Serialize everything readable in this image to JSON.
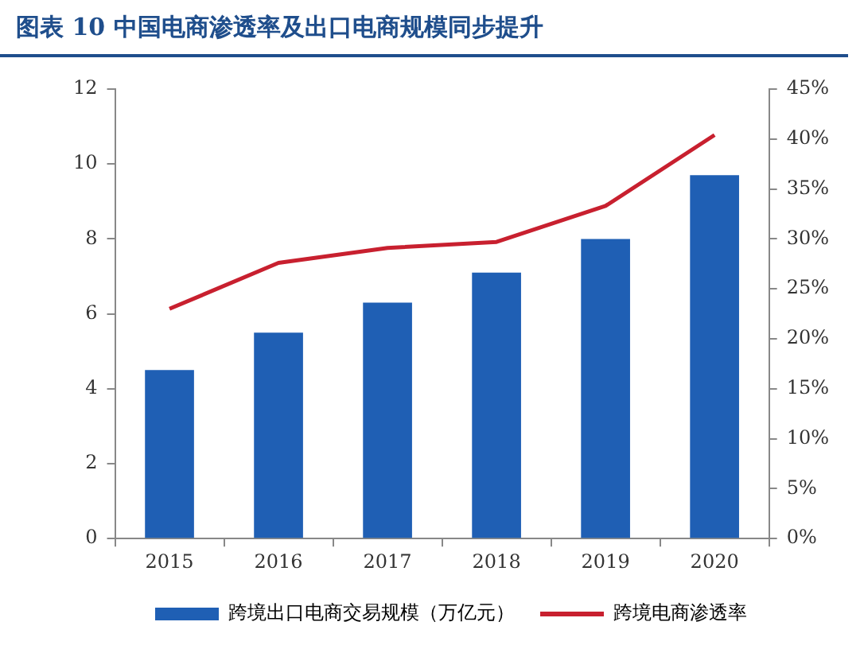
{
  "chart_data": {
    "type": "bar",
    "title": "图表 10  中国电商渗透率及出口电商规模同步提升",
    "categories": [
      "2015",
      "2016",
      "2017",
      "2018",
      "2019",
      "2020"
    ],
    "series": [
      {
        "name": "跨境出口电商交易规模（万亿元）",
        "color": "#1f5fb4",
        "values": [
          4.5,
          5.5,
          6.3,
          7.1,
          8.0,
          9.7
        ]
      },
      {
        "name": "跨境电商渗透率",
        "type": "line",
        "axis": "y2",
        "color": "#c8202f",
        "values": [
          23,
          27.6,
          29.1,
          29.7,
          33.3,
          40.4
        ]
      }
    ],
    "ylim": [
      0,
      12
    ],
    "yticks": [
      0,
      2,
      4,
      6,
      8,
      10,
      12
    ],
    "y2lim": [
      0,
      45
    ],
    "y2ticks": [
      {
        "value": 0,
        "label": "0%"
      },
      {
        "value": 5,
        "label": "5%"
      },
      {
        "value": 10,
        "label": "10%"
      },
      {
        "value": 15,
        "label": "15%"
      },
      {
        "value": 20,
        "label": "20%"
      },
      {
        "value": 25,
        "label": "25%"
      },
      {
        "value": 30,
        "label": "30%"
      },
      {
        "value": 35,
        "label": "35%"
      },
      {
        "value": 40,
        "label": "40%"
      },
      {
        "value": 45,
        "label": "45%"
      }
    ],
    "grid": false,
    "legend": "bottom",
    "marker": "none"
  }
}
